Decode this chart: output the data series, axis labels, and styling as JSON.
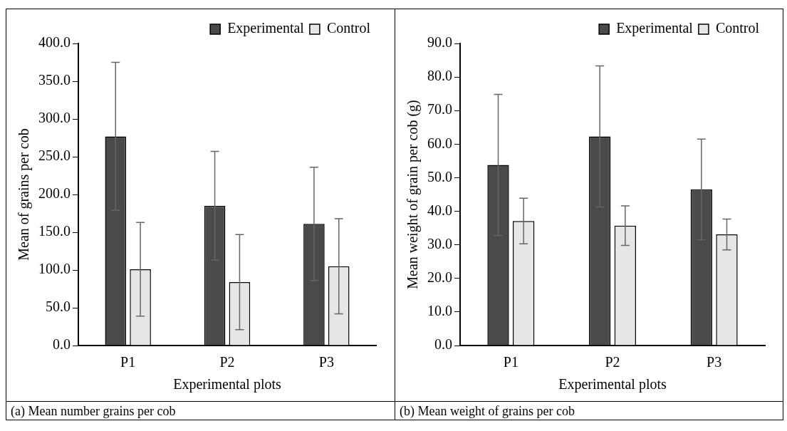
{
  "chart_data": [
    {
      "type": "bar",
      "xlabel": "Experimental plots",
      "ylabel": "Mean of grains per cob",
      "categories": [
        "P1",
        "P2",
        "P3"
      ],
      "series": [
        {
          "name": "Experimental",
          "color": "#4a4a4a",
          "values": [
            277,
            185,
            161
          ],
          "errors": [
            98,
            72,
            75
          ]
        },
        {
          "name": "Control",
          "color": "#e6e6e6",
          "values": [
            101,
            84,
            105
          ],
          "errors": [
            62,
            63,
            63
          ]
        }
      ],
      "ylim": [
        0,
        400
      ],
      "yticks": [
        {
          "value": 0,
          "label": "0.0"
        },
        {
          "value": 50,
          "label": "50.0"
        },
        {
          "value": 100,
          "label": "100.0"
        },
        {
          "value": 150,
          "label": "150.0"
        },
        {
          "value": 200,
          "label": "200.0"
        },
        {
          "value": 250,
          "label": "250.0"
        },
        {
          "value": 300,
          "label": "300.0"
        },
        {
          "value": 350,
          "label": "350.0"
        },
        {
          "value": 400,
          "label": "400.0"
        }
      ],
      "grid": false,
      "legend": "top",
      "annotations": [
        "(a) Mean number grains per cob"
      ]
    },
    {
      "type": "bar",
      "xlabel": "Experimental plots",
      "ylabel": "Mean weight of grain per cob (g)",
      "categories": [
        "P1",
        "P2",
        "P3"
      ],
      "series": [
        {
          "name": "Experimental",
          "color": "#4a4a4a",
          "values": [
            53.8,
            62.3,
            46.5
          ],
          "errors": [
            21,
            21,
            15
          ]
        },
        {
          "name": "Control",
          "color": "#e6e6e6",
          "values": [
            37.1,
            35.7,
            33.1
          ],
          "errors": [
            6.8,
            5.9,
            4.6
          ]
        }
      ],
      "ylim": [
        0,
        90
      ],
      "yticks": [
        {
          "value": 0,
          "label": "0.0"
        },
        {
          "value": 10,
          "label": "10.0"
        },
        {
          "value": 20,
          "label": "20.0"
        },
        {
          "value": 30,
          "label": "30.0"
        },
        {
          "value": 40,
          "label": "40.0"
        },
        {
          "value": 50,
          "label": "50.0"
        },
        {
          "value": 60,
          "label": "60.0"
        },
        {
          "value": 70,
          "label": "70.0"
        },
        {
          "value": 80,
          "label": "80.0"
        },
        {
          "value": 90,
          "label": "90.0"
        }
      ],
      "grid": false,
      "legend": "top",
      "annotations": [
        "(b) Mean weight of grains per cob"
      ]
    }
  ]
}
